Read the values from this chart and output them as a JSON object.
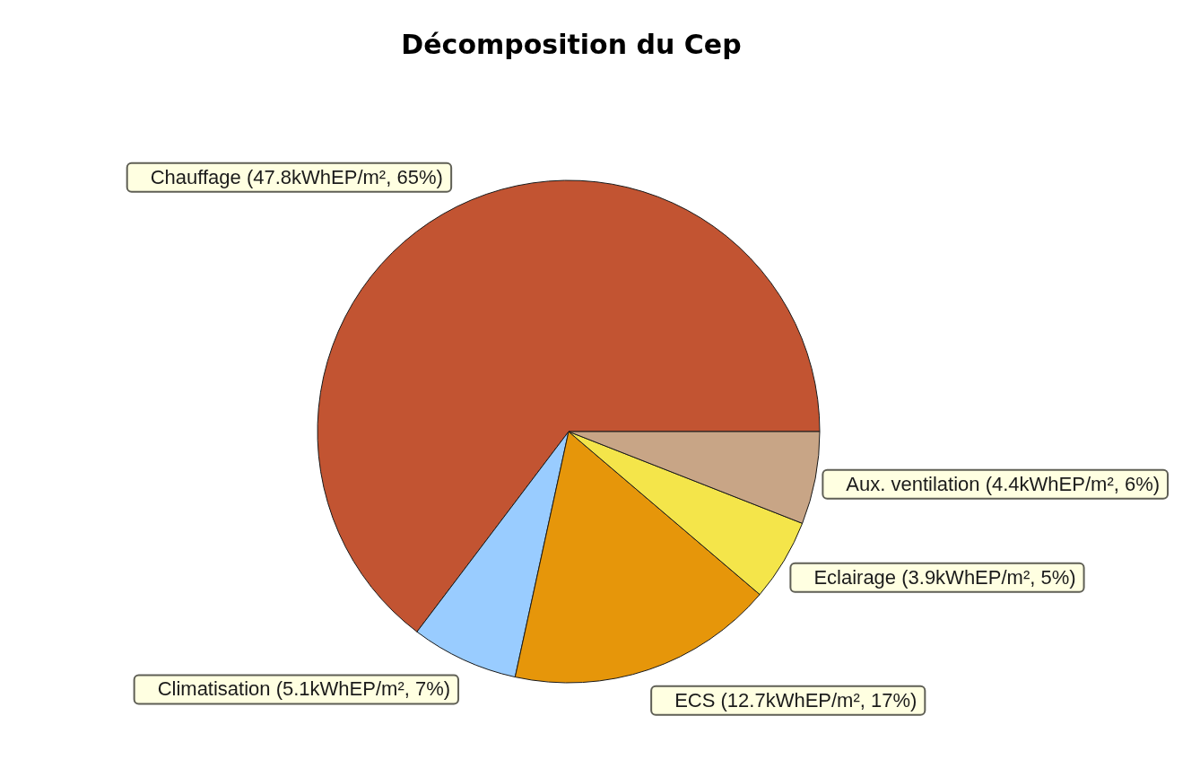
{
  "chart_data": {
    "type": "pie",
    "title": "Décomposition du Cep",
    "categories": [
      "Chauffage",
      "Climatisation",
      "ECS",
      "Eclairage",
      "Aux. ventilation"
    ],
    "values": [
      47.8,
      5.1,
      12.7,
      3.9,
      4.4
    ],
    "colors": [
      "#c25432",
      "#99ccff",
      "#e6960a",
      "#f4e54a",
      "#c8a586"
    ],
    "value_labels": [
      "(47.8kWhEP/m², 65%)",
      "(5.1kWhEP/m², 7%)",
      "(12.7kWhEP/m², 17%)",
      "(3.9kWhEP/m², 5%)",
      "(4.4kWhEP/m², 6%)"
    ]
  }
}
